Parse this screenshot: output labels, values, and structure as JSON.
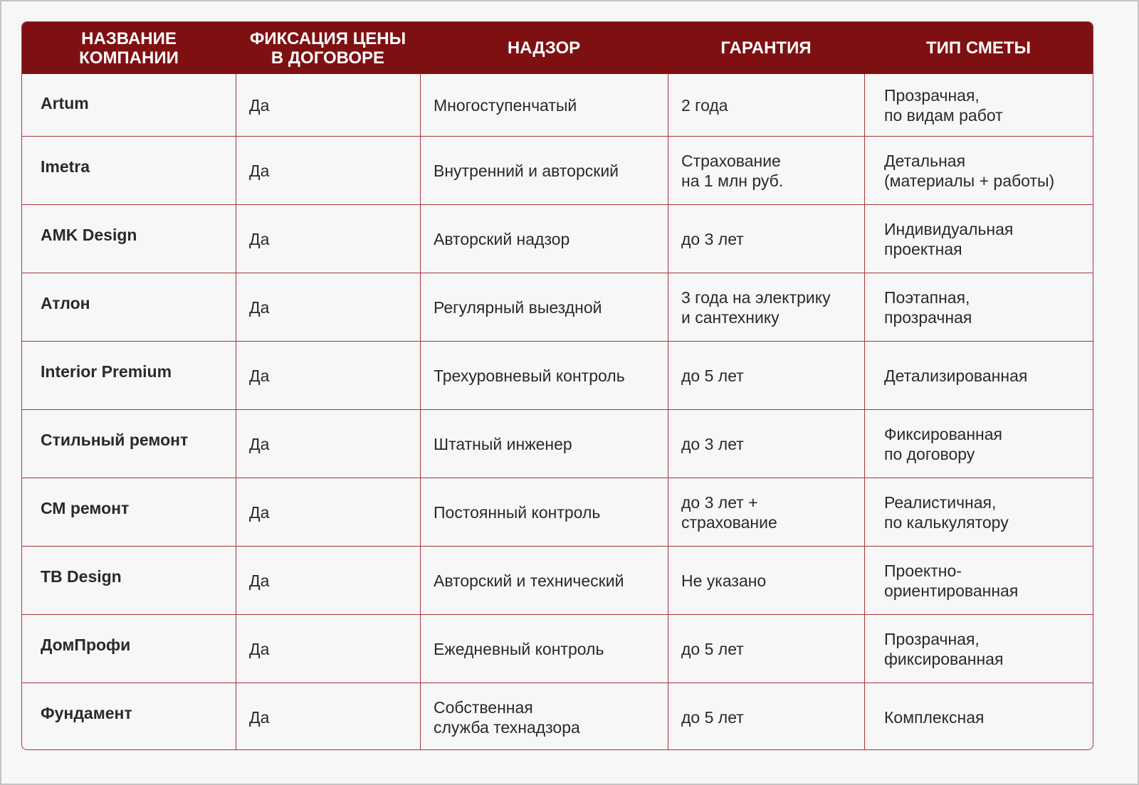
{
  "colors": {
    "header_bg": "#7f1012",
    "grid_line": "#a8353a",
    "background": "#f7f7f7"
  },
  "headers": [
    "НАЗВАНИЕ\nКОМПАНИИ",
    "ФИКСАЦИЯ ЦЕНЫ\nВ ДОГОВОРЕ",
    "НАДЗОР",
    "ГАРАНТИЯ",
    "ТИП СМЕТЫ"
  ],
  "rows": [
    [
      "Artum",
      "Да",
      "Многоступенчатый",
      "2 года",
      "Прозрачная,\nпо видам работ"
    ],
    [
      "Imetra",
      "Да",
      "Внутренний и авторский",
      "Страхование\nна 1 млн руб.",
      "Детальная\n(материалы + работы)"
    ],
    [
      "AMK Design",
      "Да",
      "Авторский надзор",
      "до 3 лет",
      "Индивидуальная\nпроектная"
    ],
    [
      "Атлон",
      "Да",
      "Регулярный выездной",
      "3 года на электрику\nи сантехнику",
      "Поэтапная,\nпрозрачная"
    ],
    [
      "Interior Premium",
      "Да",
      "Трехуровневый контроль",
      "до 5 лет",
      "Детализированная"
    ],
    [
      "Стильный ремонт",
      "Да",
      "Штатный инженер",
      "до 3 лет",
      "Фиксированная\nпо договору"
    ],
    [
      "СМ ремонт",
      "Да",
      "Постоянный контроль",
      "до 3 лет +\nстрахование",
      "Реалистичная,\nпо калькулятору"
    ],
    [
      "TB Design",
      "Да",
      "Авторский и технический",
      "Не указано",
      "Проектно-\nориентированная"
    ],
    [
      "ДомПрофи",
      "Да",
      "Ежедневный контроль",
      "до 5 лет",
      "Прозрачная,\nфиксированная"
    ],
    [
      "Фундамент",
      "Да",
      "Собственная\nслужба технадзора",
      "до 5 лет",
      "Комплексная"
    ]
  ]
}
